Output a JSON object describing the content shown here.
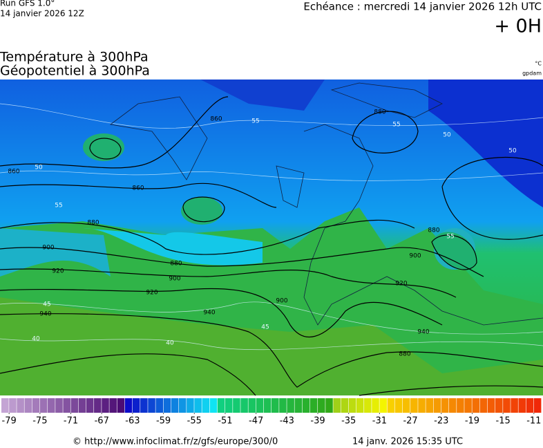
{
  "header": {
    "run": "Run GFS 1.0°",
    "date": "14 janvier 2026 12Z",
    "echeance": "Echéance : mercredi 14 janvier 2026 12h UTC",
    "lead": "+ 0H"
  },
  "titles": [
    "Température à 300hPa",
    "Géopotentiel à 300hPa"
  ],
  "units": [
    "°C",
    "gpdam"
  ],
  "geopotential_labels": [
    "860",
    "860",
    "880",
    "860",
    "880",
    "900",
    "920",
    "880",
    "900",
    "920",
    "940",
    "940",
    "900",
    "880",
    "900",
    "920",
    "940",
    "880"
  ],
  "temperature_labels": [
    "55",
    "55",
    "50",
    "55",
    "45",
    "40",
    "40",
    "45",
    "55",
    "50",
    "50"
  ],
  "colorbar": {
    "range": [
      -80,
      -10
    ],
    "ticks": [
      -79,
      -75,
      -71,
      -67,
      -63,
      -59,
      -55,
      -51,
      -47,
      -43,
      -39,
      -35,
      -31,
      -27,
      -23,
      -19,
      -15,
      -11
    ],
    "segments": [
      {
        "range": [
          -80,
          -64
        ],
        "colors": [
          "#c4a4d4",
          "#4c0c74"
        ]
      },
      {
        "range": [
          -64,
          -52
        ],
        "colors": [
          "#0c0cc8",
          "#10e4f4"
        ]
      },
      {
        "range": [
          -52,
          -37
        ],
        "colors": [
          "#10d080",
          "#30a818"
        ]
      },
      {
        "range": [
          -37,
          -30
        ],
        "colors": [
          "#a0d018",
          "#f4f400"
        ]
      },
      {
        "range": [
          -30,
          -10
        ],
        "colors": [
          "#f8d000",
          "#f02808"
        ]
      }
    ]
  },
  "footer": {
    "source": "© http://www.infoclimat.fr/z/gfs/europe/300/0",
    "generated": "14 janv. 2026 15:35 UTC"
  }
}
